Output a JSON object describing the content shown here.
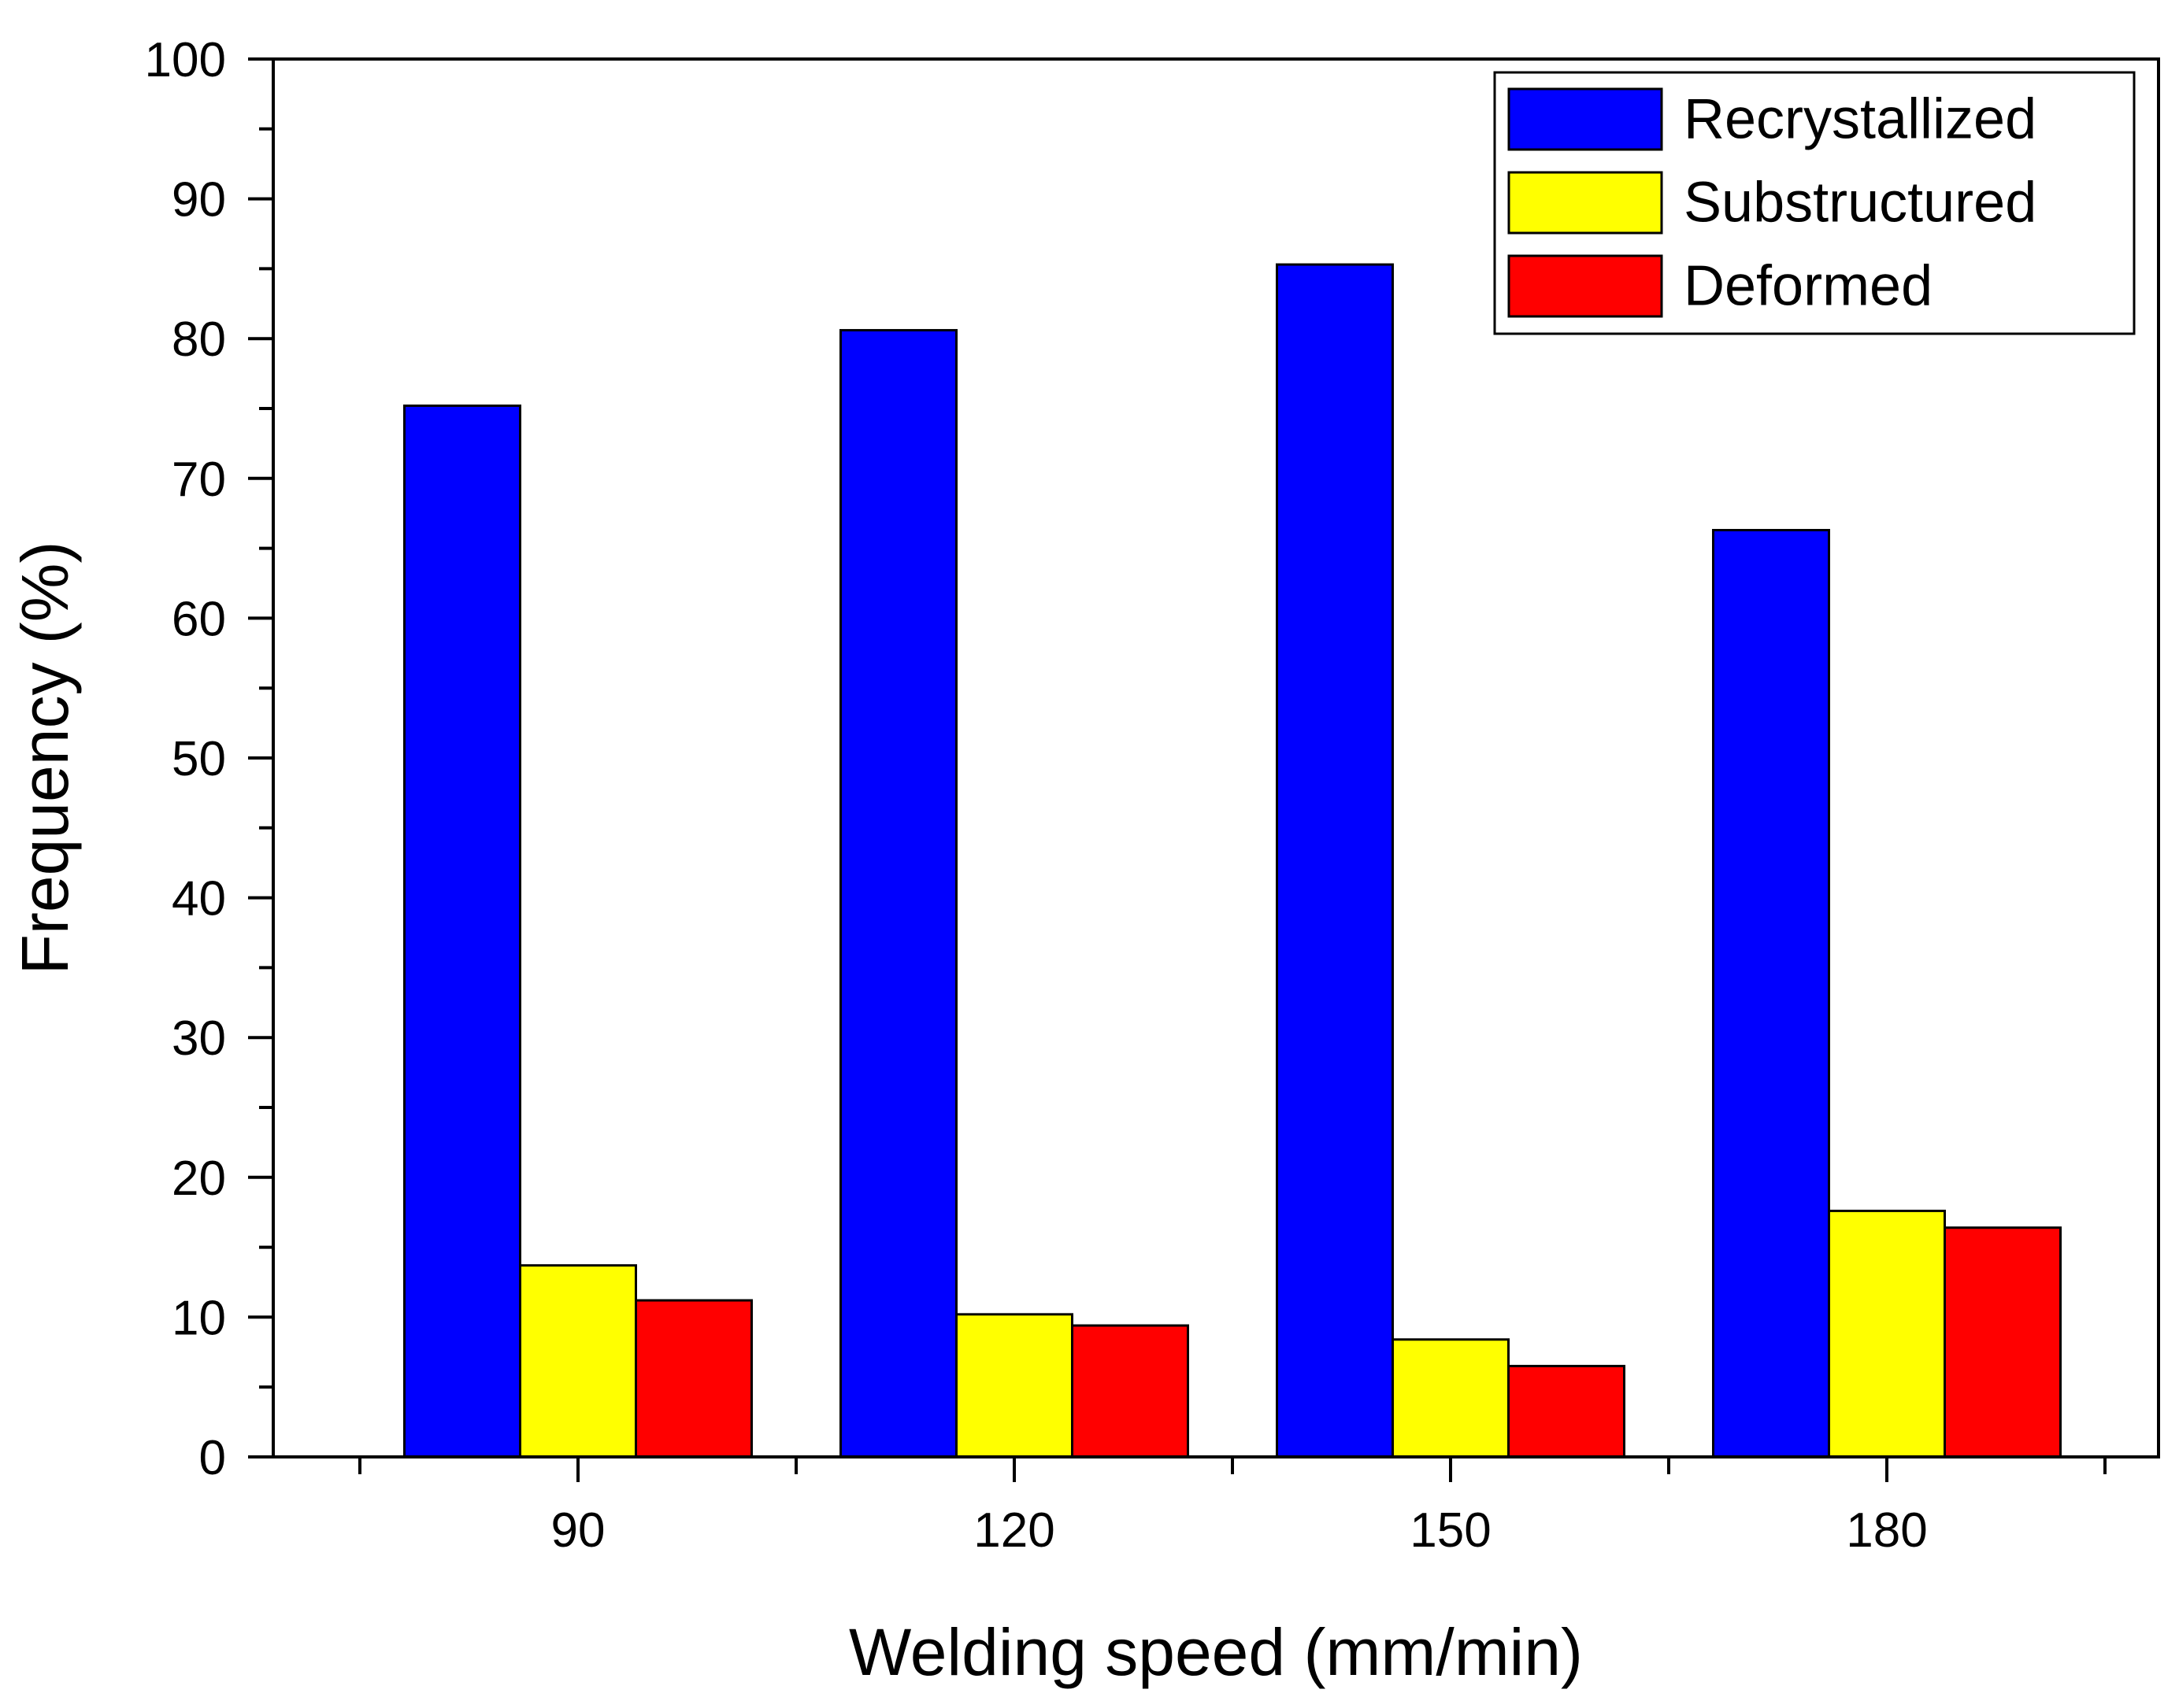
{
  "chart_data": {
    "type": "bar",
    "title": "",
    "xlabel": "Welding speed (mm/min)",
    "ylabel": "Frequency (%)",
    "categories": [
      "90",
      "120",
      "150",
      "180"
    ],
    "series": [
      {
        "name": "Recrystallized",
        "color": "#0000ff",
        "values": [
          75.2,
          80.6,
          85.3,
          66.3
        ]
      },
      {
        "name": "Substructured",
        "color": "#ffff00",
        "values": [
          13.7,
          10.2,
          8.4,
          17.6
        ]
      },
      {
        "name": "Deformed",
        "color": "#ff0000",
        "values": [
          11.2,
          9.4,
          6.5,
          16.4
        ]
      }
    ],
    "ylim": [
      0,
      100
    ],
    "yticks": [
      "0",
      "10",
      "20",
      "30",
      "40",
      "50",
      "60",
      "70",
      "80",
      "90",
      "100"
    ],
    "grid": false,
    "legend_position": "top-right"
  }
}
